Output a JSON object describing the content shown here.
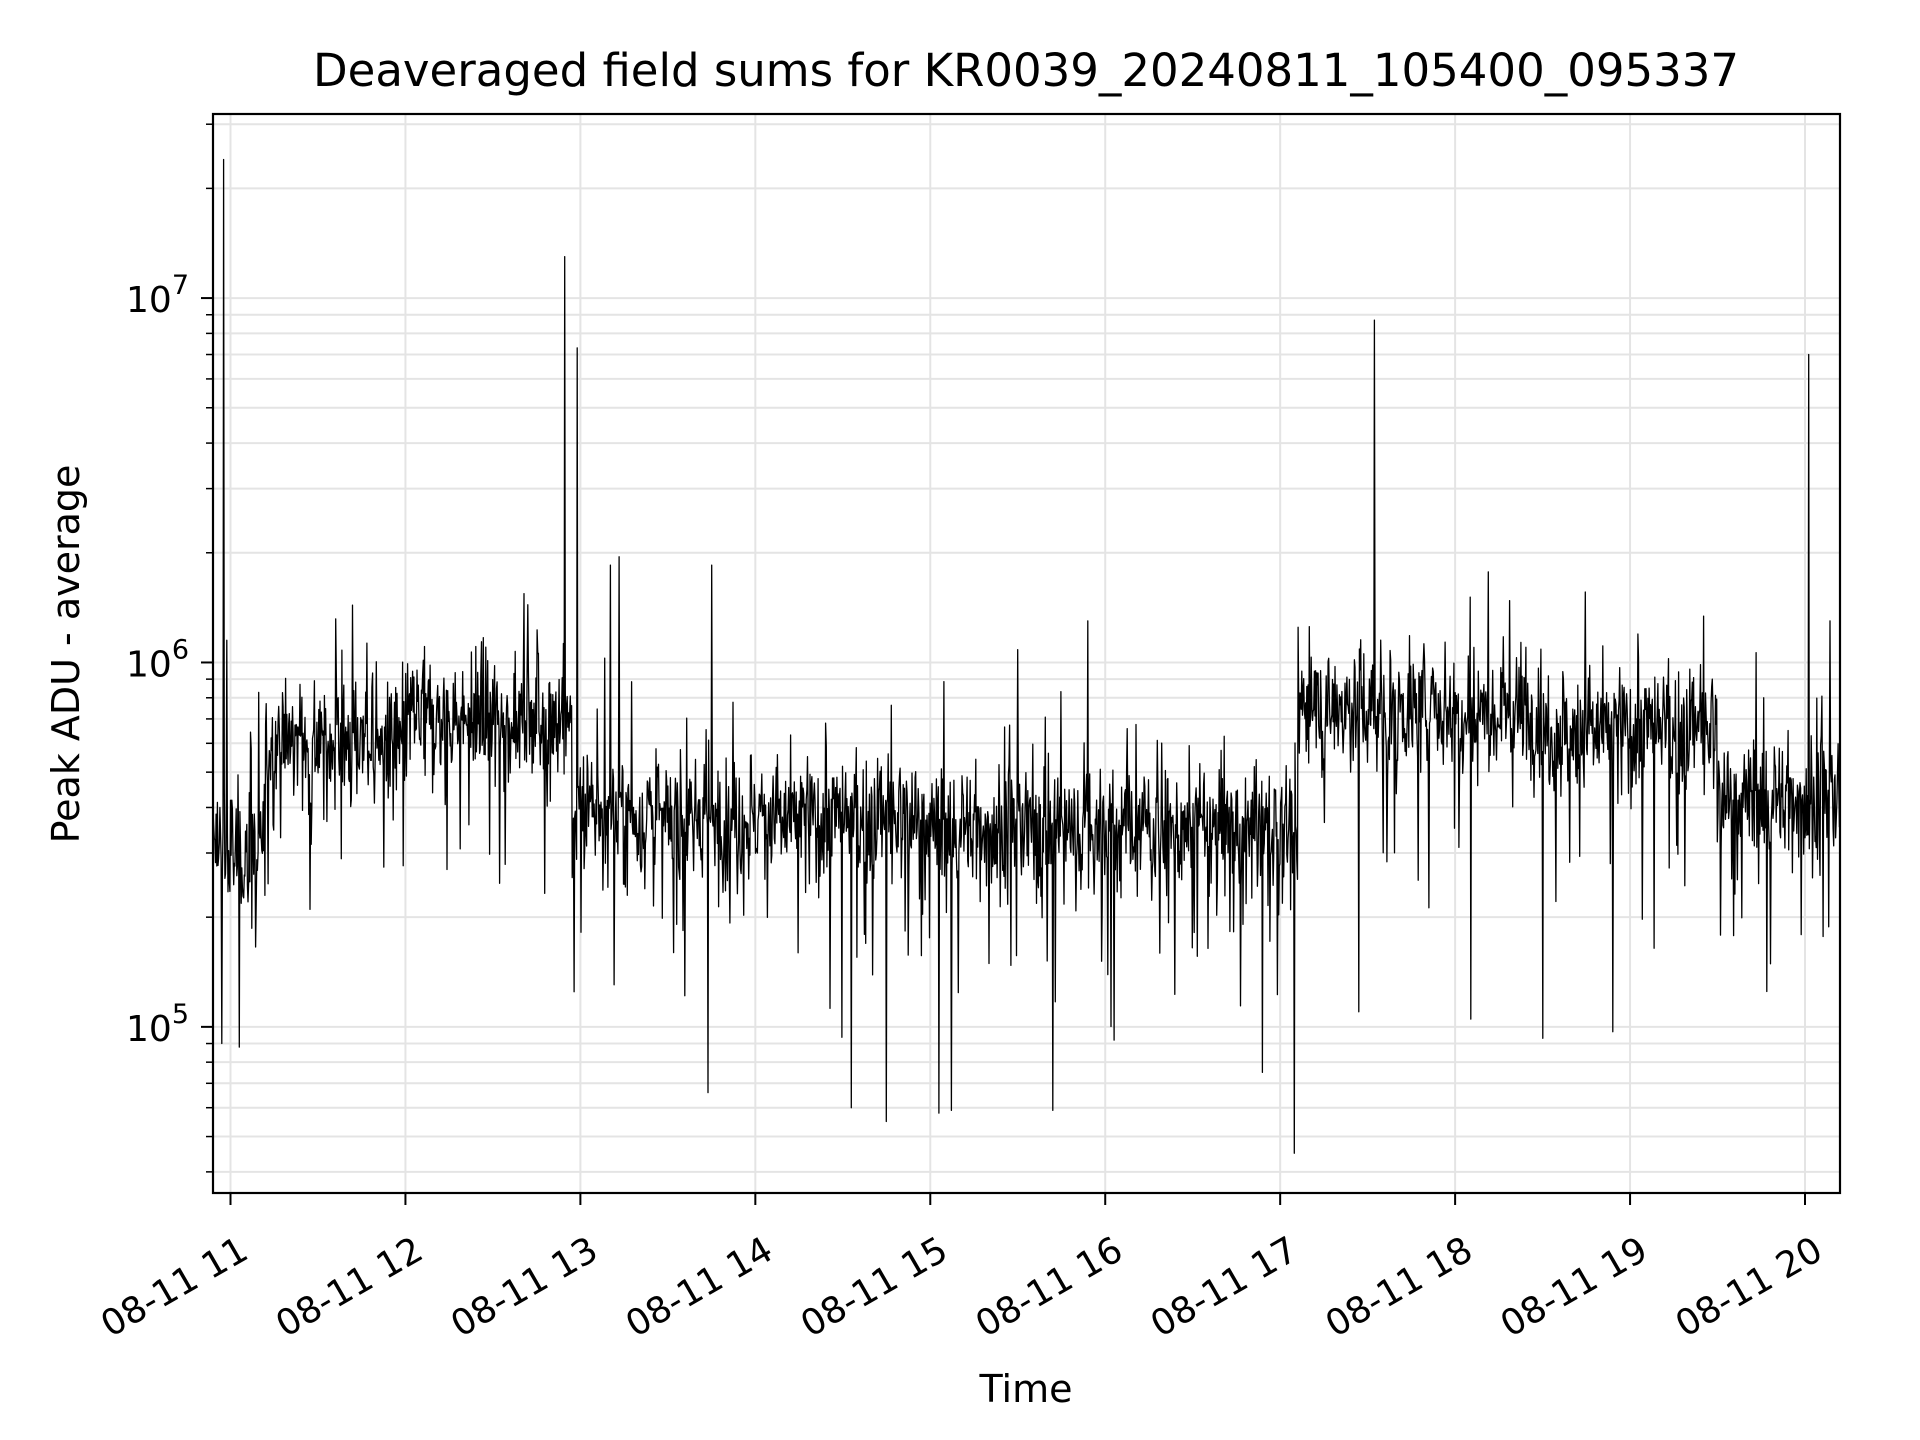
{
  "chart_data": {
    "type": "line",
    "title": "Deaveraged field sums for KR0039_20240811_105400_095337",
    "xlabel": "Time",
    "ylabel": "Peak ADU - average",
    "yscale": "log",
    "ylim": [
      35000,
      32000000
    ],
    "xlim_hours": [
      10.9,
      20.2
    ],
    "grid": true,
    "line_color": "#000000",
    "x_ticks": [
      {
        "hour": 11,
        "label": "08-11 11"
      },
      {
        "hour": 12,
        "label": "08-11 12"
      },
      {
        "hour": 13,
        "label": "08-11 13"
      },
      {
        "hour": 14,
        "label": "08-11 14"
      },
      {
        "hour": 15,
        "label": "08-11 15"
      },
      {
        "hour": 16,
        "label": "08-11 16"
      },
      {
        "hour": 17,
        "label": "08-11 17"
      },
      {
        "hour": 18,
        "label": "08-11 18"
      },
      {
        "hour": 19,
        "label": "08-11 19"
      },
      {
        "hour": 20,
        "label": "08-11 20"
      }
    ],
    "y_ticks": [
      {
        "value": 100000,
        "base": "10",
        "exp": "5"
      },
      {
        "value": 1000000,
        "base": "10",
        "exp": "6"
      },
      {
        "value": 10000000,
        "base": "10",
        "exp": "7"
      }
    ],
    "baseline_segments": [
      {
        "from": 10.9,
        "to": 11.2,
        "level": 300000
      },
      {
        "from": 11.2,
        "to": 12.0,
        "level": 600000
      },
      {
        "from": 12.0,
        "to": 12.95,
        "level": 700000
      },
      {
        "from": 12.95,
        "to": 15.0,
        "level": 370000
      },
      {
        "from": 15.0,
        "to": 17.1,
        "level": 350000
      },
      {
        "from": 17.1,
        "to": 18.5,
        "level": 750000
      },
      {
        "from": 18.5,
        "to": 19.5,
        "level": 650000
      },
      {
        "from": 19.5,
        "to": 20.2,
        "level": 420000
      }
    ],
    "spikes": [
      {
        "hour": 10.96,
        "value": 24000000
      },
      {
        "hour": 10.98,
        "value": 1150000
      },
      {
        "hour": 12.91,
        "value": 13000000
      },
      {
        "hour": 12.98,
        "value": 7300000
      },
      {
        "hour": 13.17,
        "value": 1850000
      },
      {
        "hour": 13.22,
        "value": 1950000
      },
      {
        "hour": 13.75,
        "value": 1850000
      },
      {
        "hour": 15.9,
        "value": 1300000
      },
      {
        "hour": 17.54,
        "value": 8700000
      },
      {
        "hour": 20.02,
        "value": 7000000
      }
    ],
    "dips": [
      {
        "hour": 10.95,
        "value": 90000
      },
      {
        "hour": 11.05,
        "value": 88000
      },
      {
        "hour": 12.98,
        "value": 130000
      },
      {
        "hour": 13.73,
        "value": 66000
      },
      {
        "hour": 14.55,
        "value": 60000
      },
      {
        "hour": 14.75,
        "value": 55000
      },
      {
        "hour": 15.05,
        "value": 58000
      },
      {
        "hour": 15.12,
        "value": 59000
      },
      {
        "hour": 15.7,
        "value": 59000
      },
      {
        "hour": 16.05,
        "value": 92000
      },
      {
        "hour": 16.9,
        "value": 75000
      },
      {
        "hour": 17.08,
        "value": 45000
      },
      {
        "hour": 17.45,
        "value": 110000
      },
      {
        "hour": 18.09,
        "value": 105000
      },
      {
        "hour": 18.5,
        "value": 93000
      },
      {
        "hour": 18.9,
        "value": 97000
      },
      {
        "hour": 19.78,
        "value": 125000
      }
    ]
  }
}
